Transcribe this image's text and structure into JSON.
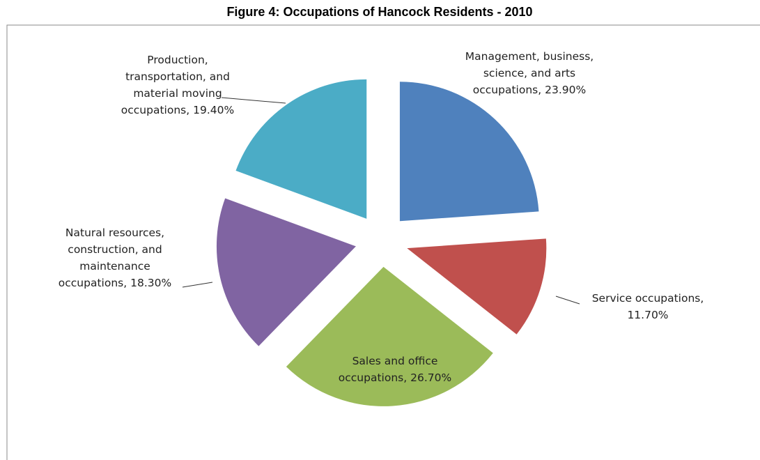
{
  "chart_data": {
    "type": "pie",
    "title": "Figure 4:  Occupations of Hancock Residents - 2010",
    "values": [
      23.9,
      11.7,
      26.7,
      18.3,
      19.4
    ],
    "value_labels": [
      "Management, business, science, and arts occupations, 23.90%",
      "Service occupations, 11.70%",
      "Sales and office occupations, 26.70%",
      "Natural resources, construction, and maintenance occupations, 18.30%",
      "Production, transportation, and material moving occupations, 19.40%"
    ],
    "colors": [
      "#4f81bd",
      "#c0504d",
      "#9bbb59",
      "#8064a2",
      "#4bacc6"
    ]
  }
}
